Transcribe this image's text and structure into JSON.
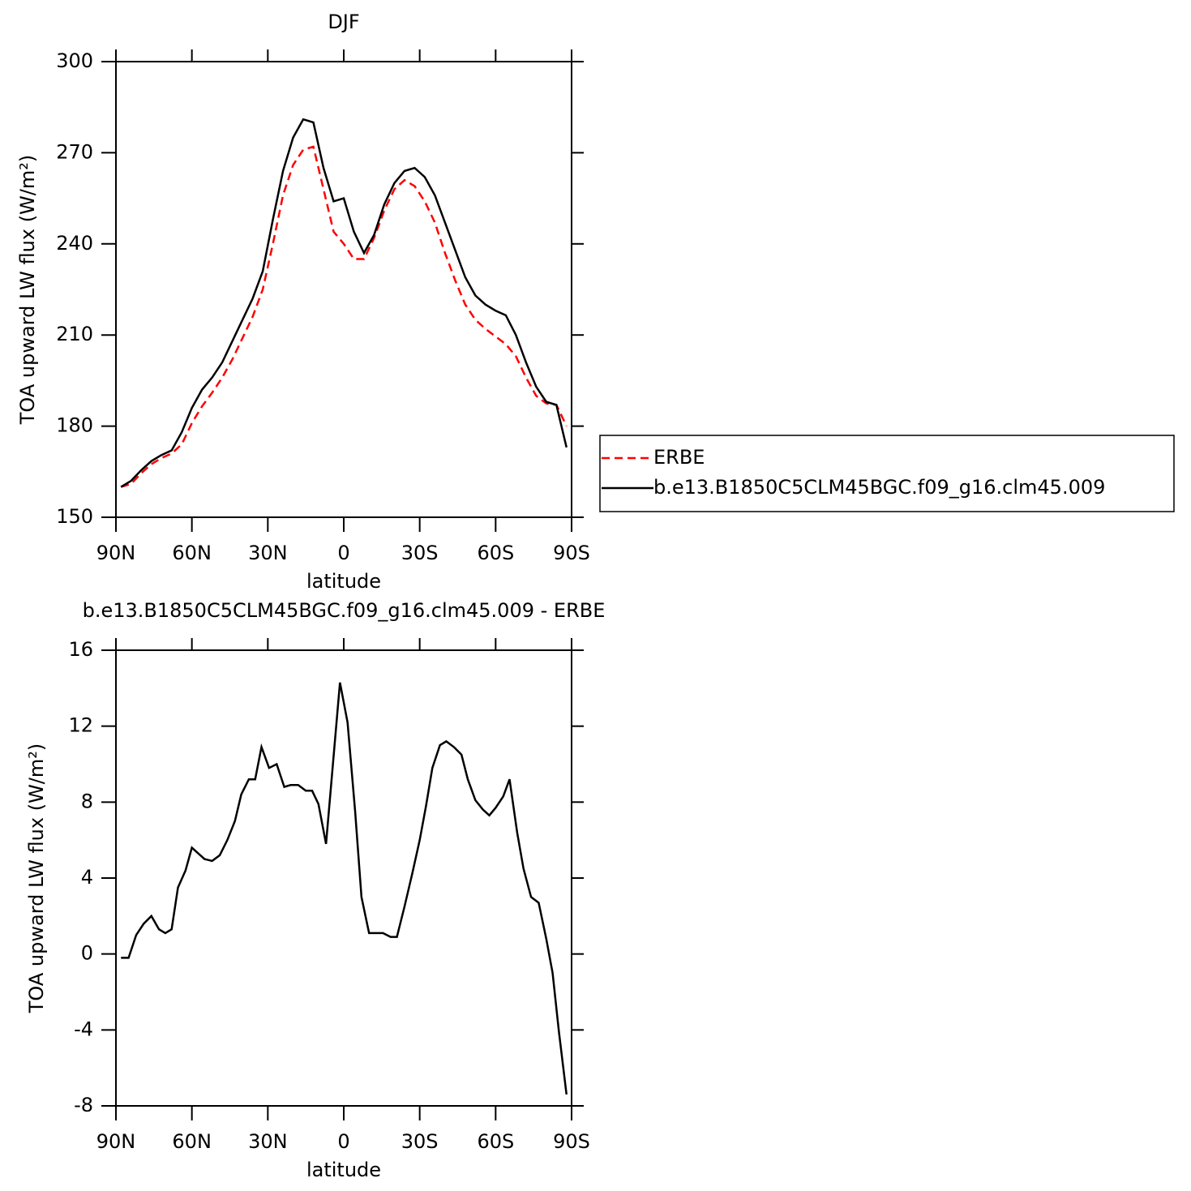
{
  "chart_data": [
    {
      "type": "line",
      "title": "DJF",
      "x_label": "latitude",
      "y_label": "TOA upward LW flux (W/m²)",
      "x": [
        88,
        84,
        80,
        76,
        72,
        68,
        64,
        60,
        56,
        52,
        48,
        44,
        40,
        36,
        32,
        28,
        24,
        20,
        16,
        12,
        8,
        4,
        0,
        -4,
        -8,
        -12,
        -16,
        -20,
        -24,
        -28,
        -32,
        -36,
        -40,
        -44,
        -48,
        -52,
        -56,
        -60,
        -64,
        -68,
        -72,
        -76,
        -80,
        -84,
        -88
      ],
      "series": [
        {
          "name": "ERBE",
          "color": "#ff0000",
          "line_style": "dashed",
          "values": [
            160,
            161,
            164.5,
            167.5,
            169.5,
            171,
            174,
            181,
            186.5,
            191,
            196,
            202,
            209,
            216,
            225,
            240,
            256,
            266,
            271,
            272,
            258,
            244,
            240,
            235,
            235,
            242,
            251,
            258,
            261,
            259,
            254,
            247,
            237,
            228,
            220,
            215,
            212,
            209.5,
            207,
            203,
            196,
            190,
            187.5,
            187,
            180
          ]
        },
        {
          "name": "b.e13.B1850C5CLM45BGC.f09_g16.clm45.009",
          "color": "#000000",
          "line_style": "solid",
          "values": [
            160,
            162,
            165.5,
            168.5,
            170.5,
            172,
            178,
            186,
            192,
            196,
            201,
            208,
            215,
            222,
            231,
            248,
            264,
            275,
            281,
            280,
            265,
            254,
            255,
            244,
            237,
            243,
            253,
            260,
            264,
            265,
            262,
            256,
            247,
            238,
            229,
            223,
            220,
            218,
            216.5,
            210,
            201,
            193,
            188,
            187,
            173
          ]
        }
      ],
      "xlim": [
        90,
        -90
      ],
      "xticks": [
        {
          "value": 90,
          "label": "90N"
        },
        {
          "value": 60,
          "label": "60N"
        },
        {
          "value": 30,
          "label": "30N"
        },
        0,
        {
          "value": -30,
          "label": "30S"
        },
        {
          "value": -60,
          "label": "60S"
        },
        {
          "value": -90,
          "label": "90S"
        }
      ],
      "ylim": [
        150,
        300
      ],
      "yticks": [
        150,
        180,
        210,
        240,
        270,
        300
      ],
      "legend": "right"
    },
    {
      "type": "line",
      "title": "b.e13.B1850C5CLM45BGC.f09_g16.clm45.009 - ERBE",
      "x_label": "latitude",
      "y_label": "TOA upward LW flux (W/m²)",
      "x": [
        88,
        85,
        82,
        79,
        76,
        73,
        70.5,
        68,
        65.5,
        62.5,
        60,
        57.5,
        55,
        52,
        49,
        46,
        43,
        40.5,
        37.5,
        35,
        32.5,
        29.5,
        26.5,
        23.5,
        21,
        18,
        15,
        12.5,
        10,
        7,
        1.5,
        -1.5,
        -4.5,
        -7,
        -10,
        -13,
        -15.5,
        -18.5,
        -21,
        -24,
        -27,
        -30,
        -32.5,
        -35,
        -38,
        -40.5,
        -43.5,
        -46.5,
        -49,
        -52,
        -55,
        -57.5,
        -60,
        -63,
        -65.5,
        -68.5,
        -71,
        -74,
        -77,
        -80,
        -82.5,
        -85,
        -88
      ],
      "series": [
        {
          "color": "#000000",
          "line_style": "solid",
          "values": [
            -0.2,
            -0.2,
            1.0,
            1.6,
            2.0,
            1.3,
            1.1,
            1.3,
            3.5,
            4.4,
            5.6,
            5.3,
            5.0,
            4.9,
            5.2,
            6.0,
            7.0,
            8.4,
            9.2,
            9.2,
            10.9,
            9.8,
            10.0,
            8.8,
            8.9,
            8.9,
            8.6,
            8.6,
            7.9,
            5.8,
            14.3,
            12.2,
            7.5,
            3.0,
            1.1,
            1.1,
            1.1,
            0.9,
            0.9,
            2.5,
            4.2,
            6.0,
            7.8,
            9.8,
            11.0,
            11.2,
            10.9,
            10.5,
            9.2,
            8.1,
            7.6,
            7.3,
            7.7,
            8.3,
            9.2,
            6.4,
            4.5,
            3.0,
            2.7,
            0.8,
            -1.0,
            -4.1,
            -7.4
          ]
        }
      ],
      "xlim": [
        90,
        -90
      ],
      "xticks": [
        {
          "value": 90,
          "label": "90N"
        },
        {
          "value": 60,
          "label": "60N"
        },
        {
          "value": 30,
          "label": "30N"
        },
        0,
        {
          "value": -30,
          "label": "30S"
        },
        {
          "value": -60,
          "label": "60S"
        },
        {
          "value": -90,
          "label": "90S"
        }
      ],
      "ylim": [
        -8,
        16
      ],
      "yticks": [
        -8,
        -4,
        0,
        4,
        8,
        12,
        16
      ]
    }
  ]
}
